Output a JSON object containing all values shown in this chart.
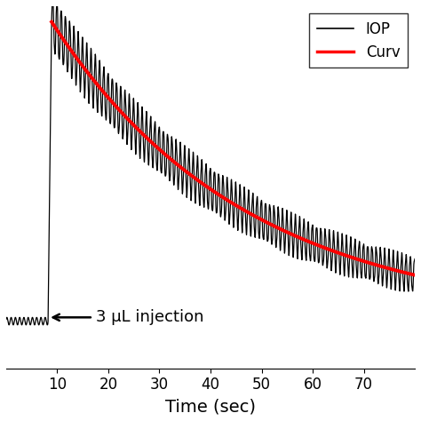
{
  "xlim": [
    0,
    80
  ],
  "xlabel": "Time (sec)",
  "xlabel_fontsize": 14,
  "xticks": [
    10,
    20,
    30,
    40,
    50,
    60,
    70
  ],
  "iop_color": "#000000",
  "curve_color": "#FF0000",
  "iop_linewidth": 0.9,
  "curve_linewidth": 2.8,
  "legend_labels": [
    "IOP",
    "Curv"
  ],
  "annotation_text": "3 μL injection",
  "background_color": "#ffffff",
  "baseline": 0.05,
  "peak_value": 1.0,
  "decay_tau": 38.0,
  "osc_freq": 1.2,
  "osc_amp_early": 0.06,
  "osc_amp_late": 0.03,
  "t_injection": 8.5,
  "dt": 0.05
}
